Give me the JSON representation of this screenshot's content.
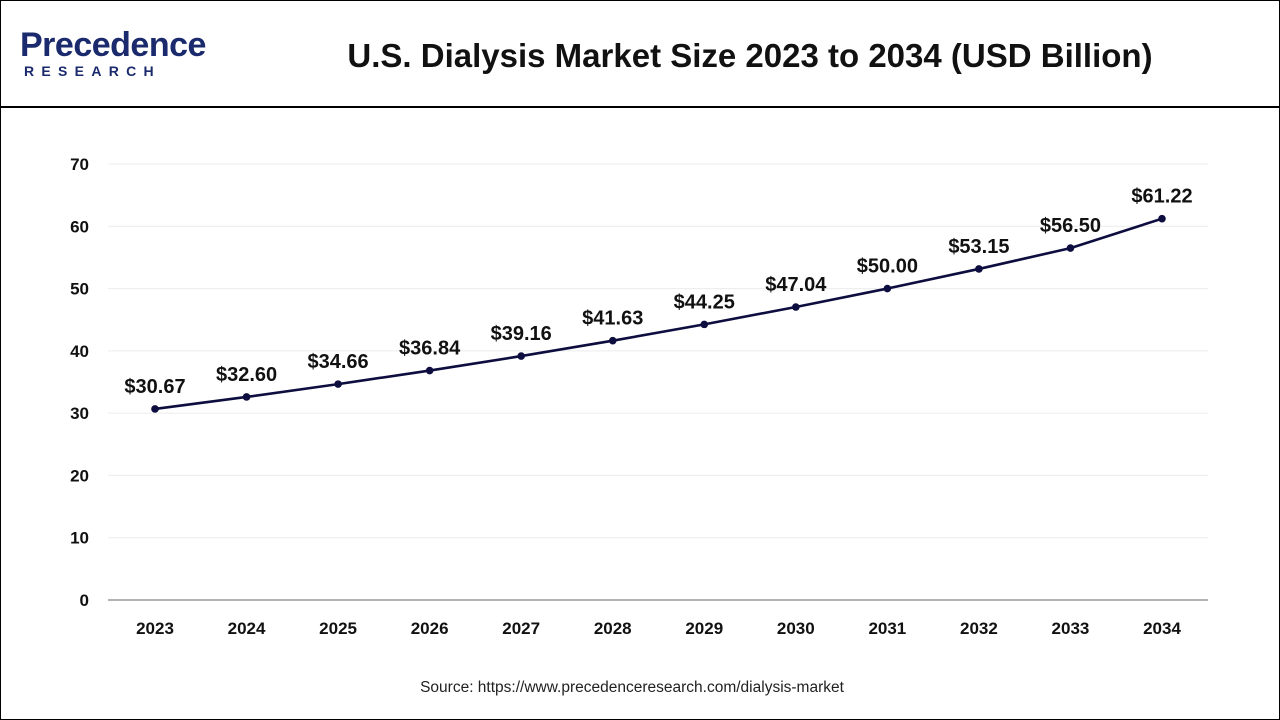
{
  "header": {
    "logo_word": "Precedence",
    "logo_sub": "RESEARCH"
  },
  "chart_data": {
    "type": "line",
    "title": "U.S. Dialysis Market Size 2023 to 2034 (USD Billion)",
    "categories": [
      "2023",
      "2024",
      "2025",
      "2026",
      "2027",
      "2028",
      "2029",
      "2030",
      "2031",
      "2032",
      "2033",
      "2034"
    ],
    "series": [
      {
        "values": [
          30.67,
          32.6,
          34.66,
          36.84,
          39.16,
          41.63,
          44.25,
          47.04,
          50.0,
          53.15,
          56.5,
          61.22
        ],
        "labels": [
          "$30.67",
          "$32.60",
          "$34.66",
          "$36.84",
          "$39.16",
          "$41.63",
          "$44.25",
          "$47.04",
          "$50.00",
          "$53.15",
          "$56.50",
          "$61.22"
        ],
        "color": "#0d0d3f"
      }
    ],
    "yticks": [
      "0",
      "10",
      "20",
      "30",
      "40",
      "50",
      "60",
      "70"
    ],
    "ylim": [
      0,
      70
    ],
    "grid": true,
    "xlabel": "",
    "ylabel": ""
  },
  "source": "Source: https://www.precedenceresearch.com/dialysis-market"
}
